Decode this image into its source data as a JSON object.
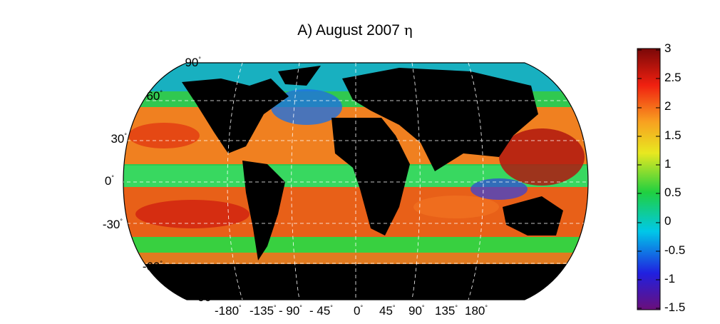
{
  "title": {
    "text": "A) August 2007",
    "symbol": "η"
  },
  "map": {
    "projection": "Robinson",
    "variable_symbol": "η",
    "land_color": "#000000",
    "coastline_color": "#ffffff",
    "graticule": "dashed white",
    "lat_labels": [
      "90",
      "60",
      "30",
      "0",
      "-30",
      "-60",
      "-90"
    ],
    "lon_labels": [
      "-180",
      "-135",
      "- 90",
      "- 45",
      "0",
      "45",
      "90",
      "135",
      "180"
    ]
  },
  "colorbar": {
    "ticks": [
      "3",
      "2.5",
      "2",
      "1.5",
      "1",
      "0.5",
      "0",
      "-0.5",
      "-1",
      "-1.5"
    ],
    "range": [
      -1.5,
      3
    ],
    "colormap": [
      "#6b0f7a",
      "#2020e0",
      "#00c8e8",
      "#20d040",
      "#e8e820",
      "#f8a020",
      "#f02010",
      "#7a0808"
    ]
  }
}
